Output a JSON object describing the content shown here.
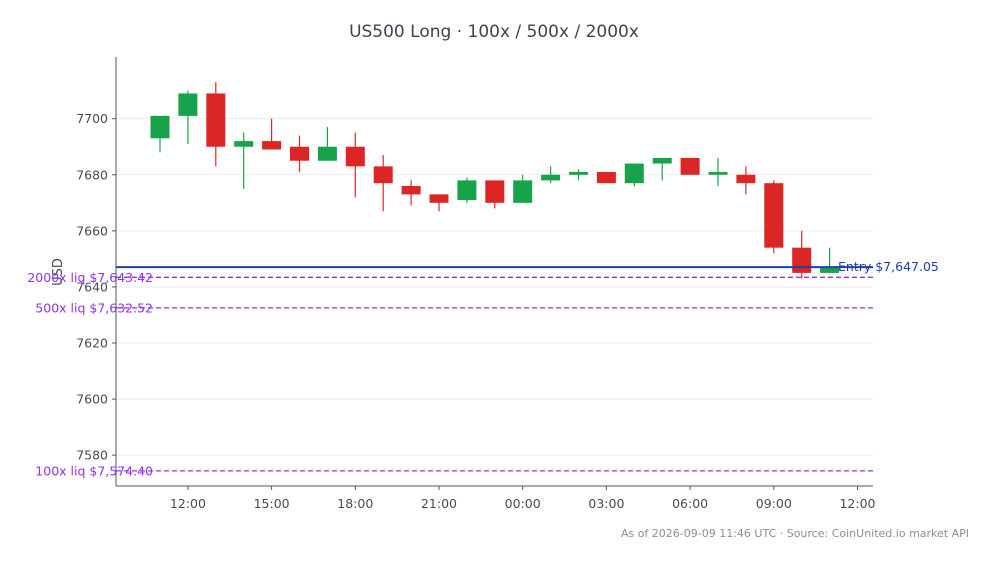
{
  "chart_data": {
    "type": "candlestick",
    "title": "US500 Long · 100x / 500x / 2000x",
    "ylabel": "USD",
    "xlabel": "",
    "ylim": [
      7569,
      7722
    ],
    "yticks": [
      7580,
      7600,
      7620,
      7640,
      7660,
      7680,
      7700
    ],
    "xticks": [
      "12:00",
      "15:00",
      "18:00",
      "21:00",
      "00:00",
      "03:00",
      "06:00",
      "09:00",
      "12:00"
    ],
    "grid": "horizontal",
    "colors": {
      "up": "#16a34a",
      "down": "#dc2626",
      "entry": "#1e40af",
      "liq": "#9333ea"
    },
    "candles": [
      {
        "time": "11:00",
        "open": 7693,
        "high": 7701,
        "low": 7688,
        "close": 7701
      },
      {
        "time": "12:00",
        "open": 7701,
        "high": 7710,
        "low": 7691,
        "close": 7709
      },
      {
        "time": "13:00",
        "open": 7709,
        "high": 7713,
        "low": 7683,
        "close": 7690
      },
      {
        "time": "14:00",
        "open": 7690,
        "high": 7695,
        "low": 7675,
        "close": 7692
      },
      {
        "time": "15:00",
        "open": 7692,
        "high": 7700,
        "low": 7689,
        "close": 7689
      },
      {
        "time": "16:00",
        "open": 7690,
        "high": 7694,
        "low": 7681,
        "close": 7685
      },
      {
        "time": "17:00",
        "open": 7685,
        "high": 7697,
        "low": 7685,
        "close": 7690
      },
      {
        "time": "18:00",
        "open": 7690,
        "high": 7695,
        "low": 7672,
        "close": 7683
      },
      {
        "time": "19:00",
        "open": 7683,
        "high": 7687,
        "low": 7667,
        "close": 7677
      },
      {
        "time": "20:00",
        "open": 7676,
        "high": 7678,
        "low": 7669,
        "close": 7673
      },
      {
        "time": "21:00",
        "open": 7673,
        "high": 7673,
        "low": 7667,
        "close": 7670
      },
      {
        "time": "22:00",
        "open": 7671,
        "high": 7679,
        "low": 7670,
        "close": 7678
      },
      {
        "time": "23:00",
        "open": 7678,
        "high": 7678,
        "low": 7668,
        "close": 7670
      },
      {
        "time": "00:00",
        "open": 7670,
        "high": 7680,
        "low": 7670,
        "close": 7678
      },
      {
        "time": "01:00",
        "open": 7678,
        "high": 7683,
        "low": 7677,
        "close": 7680
      },
      {
        "time": "02:00",
        "open": 7680,
        "high": 7682,
        "low": 7678,
        "close": 7681
      },
      {
        "time": "03:00",
        "open": 7681,
        "high": 7681,
        "low": 7677,
        "close": 7677
      },
      {
        "time": "04:00",
        "open": 7677,
        "high": 7684,
        "low": 7676,
        "close": 7684
      },
      {
        "time": "05:00",
        "open": 7684,
        "high": 7686,
        "low": 7678,
        "close": 7686
      },
      {
        "time": "06:00",
        "open": 7686,
        "high": 7686,
        "low": 7680,
        "close": 7680
      },
      {
        "time": "07:00",
        "open": 7680,
        "high": 7686,
        "low": 7676,
        "close": 7681
      },
      {
        "time": "08:00",
        "open": 7680,
        "high": 7683,
        "low": 7673,
        "close": 7677
      },
      {
        "time": "09:00",
        "open": 7677,
        "high": 7678,
        "low": 7652,
        "close": 7654
      },
      {
        "time": "10:00",
        "open": 7654,
        "high": 7660,
        "low": 7643,
        "close": 7645
      },
      {
        "time": "11:00",
        "open": 7645,
        "high": 7654,
        "low": 7645,
        "close": 7647
      }
    ],
    "levels": [
      {
        "name": "entry",
        "label": "Entry $7,647.05",
        "value": 7647.05,
        "style": "solid",
        "label_side": "right"
      },
      {
        "name": "liq-2000x",
        "label": "2000x liq $7,643.42",
        "value": 7643.42,
        "style": "dashed",
        "label_side": "left"
      },
      {
        "name": "liq-500x",
        "label": "500x liq $7,632.52",
        "value": 7632.52,
        "style": "dashed",
        "label_side": "left"
      },
      {
        "name": "liq-100x",
        "label": "100x liq $7,574.40",
        "value": 7574.4,
        "style": "dashed",
        "label_side": "left"
      }
    ],
    "footer": "As of 2026-09-09 11:46 UTC · Source: CoinUnited.io market API"
  }
}
